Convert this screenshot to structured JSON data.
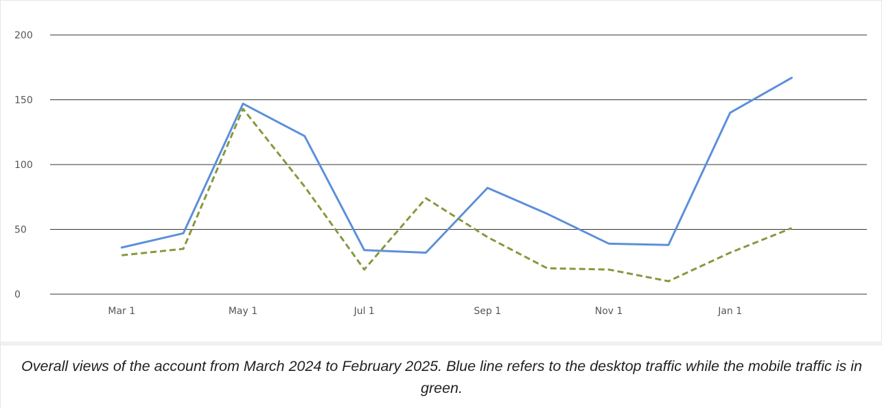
{
  "chart_data": {
    "type": "line",
    "title": "",
    "xlabel": "",
    "ylabel": "",
    "ylim": [
      0,
      200
    ],
    "yticks": [
      0,
      50,
      100,
      150,
      200
    ],
    "x": [
      "2024-03-01",
      "2024-04-01",
      "2024-05-01",
      "2024-06-01",
      "2024-07-01",
      "2024-08-01",
      "2024-09-01",
      "2024-10-01",
      "2024-11-01",
      "2024-12-01",
      "2025-01-01",
      "2025-02-01"
    ],
    "xtick_labels": [
      "Mar 1",
      "May 1",
      "Jul 1",
      "Sep 1",
      "Nov 1",
      "Jan 1"
    ],
    "grid": true,
    "legend": "none",
    "series": [
      {
        "color": "#5b8fd9",
        "style": "solid",
        "values": [
          36,
          47,
          147,
          122,
          34,
          32,
          82,
          62,
          39,
          38,
          140,
          167
        ]
      },
      {
        "color": "#86983d",
        "style": "dashed",
        "values": [
          30,
          35,
          143,
          83,
          19,
          74,
          44,
          20,
          19,
          10,
          32,
          51
        ]
      }
    ]
  },
  "caption": "Overall views of the account from March 2024 to February 2025. Blue line refers to the desktop traffic while the mobile traffic is in green."
}
